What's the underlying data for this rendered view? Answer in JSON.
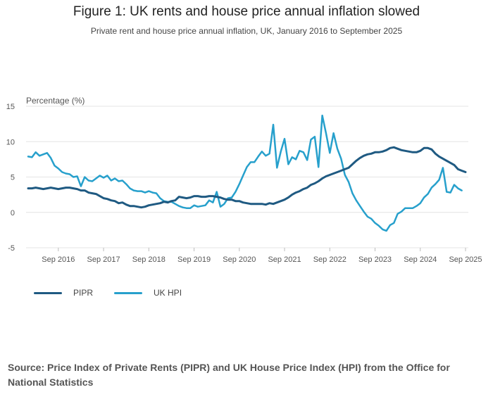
{
  "colors": {
    "pipr": "#1f5a82",
    "hpi": "#27a0cc",
    "grid": "#e4e4e4",
    "axis": "#bdbdbd"
  },
  "chart_data": {
    "type": "line",
    "title": "Figure 1: UK rents and house price annual inflation slowed",
    "subtitle": "Private rent and house price annual inflation, UK, January 2016 to September 2025",
    "ylabel": "Percentage (%)",
    "xlabel": "",
    "ylim": [
      -5,
      15
    ],
    "yticks": [
      "15",
      "10",
      "5",
      "0",
      "-5"
    ],
    "ytick_values": [
      15,
      10,
      5,
      0,
      -5
    ],
    "x_start": "Jan 2016",
    "x_end": "Sep 2025",
    "xticks": [
      "Sep 2016",
      "Sep 2017",
      "Sep 2018",
      "Sep 2019",
      "Sep 2020",
      "Sep 2021",
      "Sep 2022",
      "Sep 2023",
      "Sep 2024",
      "Sep 2025"
    ],
    "xtick_month_index": [
      8,
      20,
      32,
      44,
      56,
      68,
      80,
      92,
      104,
      116
    ],
    "legend_position": "bottom-left",
    "series": [
      {
        "name": "PIPR",
        "values": [
          3.4,
          3.4,
          3.5,
          3.4,
          3.3,
          3.4,
          3.5,
          3.4,
          3.3,
          3.4,
          3.5,
          3.5,
          3.4,
          3.3,
          3.1,
          3.1,
          2.8,
          2.7,
          2.6,
          2.3,
          2.0,
          1.9,
          1.7,
          1.6,
          1.3,
          1.4,
          1.1,
          0.9,
          0.9,
          0.8,
          0.7,
          0.8,
          1.0,
          1.1,
          1.2,
          1.3,
          1.5,
          1.4,
          1.6,
          1.7,
          2.2,
          2.1,
          2.0,
          2.1,
          2.3,
          2.3,
          2.2,
          2.2,
          2.3,
          2.3,
          2.2,
          2.1,
          1.9,
          1.8,
          1.8,
          1.6,
          1.6,
          1.4,
          1.3,
          1.2,
          1.2,
          1.2,
          1.2,
          1.1,
          1.3,
          1.2,
          1.4,
          1.6,
          1.8,
          2.1,
          2.5,
          2.8,
          3.0,
          3.3,
          3.5,
          3.9,
          4.1,
          4.4,
          4.8,
          5.1,
          5.3,
          5.5,
          5.7,
          5.9,
          6.1,
          6.3,
          6.8,
          7.3,
          7.7,
          8.0,
          8.2,
          8.3,
          8.5,
          8.5,
          8.6,
          8.8,
          9.1,
          9.2,
          9.0,
          8.8,
          8.7,
          8.6,
          8.5,
          8.5,
          8.7,
          9.1,
          9.1,
          8.9,
          8.3,
          7.9,
          7.6,
          7.3,
          7.0,
          6.7,
          6.1,
          5.9,
          5.7
        ]
      },
      {
        "name": "UK HPI",
        "values": [
          7.9,
          7.8,
          8.5,
          8.0,
          8.2,
          8.4,
          7.7,
          6.6,
          6.2,
          5.7,
          5.5,
          5.4,
          5.0,
          5.1,
          3.7,
          5.0,
          4.5,
          4.4,
          4.8,
          5.2,
          4.9,
          5.2,
          4.5,
          4.8,
          4.4,
          4.5,
          4.0,
          3.4,
          3.1,
          3.0,
          3.0,
          2.8,
          3.0,
          2.8,
          2.7,
          2.0,
          1.6,
          1.5,
          1.5,
          1.2,
          0.9,
          0.7,
          0.6,
          0.6,
          1.0,
          0.8,
          0.9,
          1.0,
          1.7,
          1.4,
          2.9,
          0.8,
          1.2,
          2.0,
          2.1,
          2.9,
          4.0,
          5.2,
          6.4,
          7.1,
          7.1,
          7.9,
          8.6,
          8.0,
          8.3,
          12.4,
          6.3,
          8.6,
          10.4,
          6.8,
          7.8,
          7.5,
          8.7,
          8.5,
          7.4,
          10.3,
          10.7,
          6.4,
          13.7,
          11.2,
          8.4,
          11.2,
          9.0,
          7.6,
          5.3,
          4.3,
          2.7,
          1.7,
          0.9,
          0.1,
          -0.6,
          -0.9,
          -1.5,
          -1.9,
          -2.4,
          -2.6,
          -1.8,
          -1.5,
          -0.2,
          0.1,
          0.6,
          0.6,
          0.6,
          0.9,
          1.3,
          2.1,
          2.6,
          3.5,
          4.0,
          4.6,
          6.3,
          2.9,
          2.8,
          3.9,
          3.4,
          3.1
        ]
      }
    ]
  },
  "legend": {
    "pipr_label": "PIPR",
    "hpi_label": "UK HPI"
  },
  "source_text": "Source: Price Index of Private Rents (PIPR) and UK House Price Index (HPI) from the Office for National Statistics"
}
